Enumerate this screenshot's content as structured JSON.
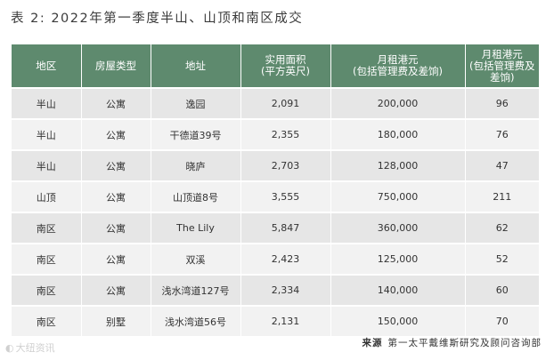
{
  "title": "表 2: 2022年第一季度半山、山顶和南区成交",
  "headers": [
    [
      "地区"
    ],
    [
      "房屋类型"
    ],
    [
      "地址"
    ],
    [
      "实用面积",
      "(平方英尺)"
    ],
    [
      "月租港元",
      "(包括管理费及差饷)"
    ],
    [
      "月租港元",
      "(包括管理费及",
      "差饷)"
    ]
  ],
  "rows": [
    [
      "半山",
      "公寓",
      "逸园",
      "2,091",
      "200,000",
      "96"
    ],
    [
      "半山",
      "公寓",
      "干德道39号",
      "2,355",
      "180,000",
      "76"
    ],
    [
      "半山",
      "公寓",
      "晓庐",
      "2,703",
      "128,000",
      "47"
    ],
    [
      "山顶",
      "公寓",
      "山顶道8号",
      "3,555",
      "750,000",
      "211"
    ],
    [
      "南区",
      "公寓",
      "The Lily",
      "5,847",
      "360,000",
      "62"
    ],
    [
      "南区",
      "公寓",
      "双溪",
      "2,423",
      "125,000",
      "52"
    ],
    [
      "南区",
      "公寓",
      "浅水湾道127号",
      "2,334",
      "140,000",
      "60"
    ],
    [
      "南区",
      "别墅",
      "浅水湾道56号",
      "2,131",
      "150,000",
      "70"
    ]
  ],
  "source": {
    "label": "来源",
    "text": "第一太平戴维斯研究及顾问咨询部"
  },
  "watermark": "大纽资讯",
  "colors": {
    "header_bg": "#5e8a6e",
    "row_odd": "#e6e6e6",
    "row_even": "#f2f2f2"
  }
}
